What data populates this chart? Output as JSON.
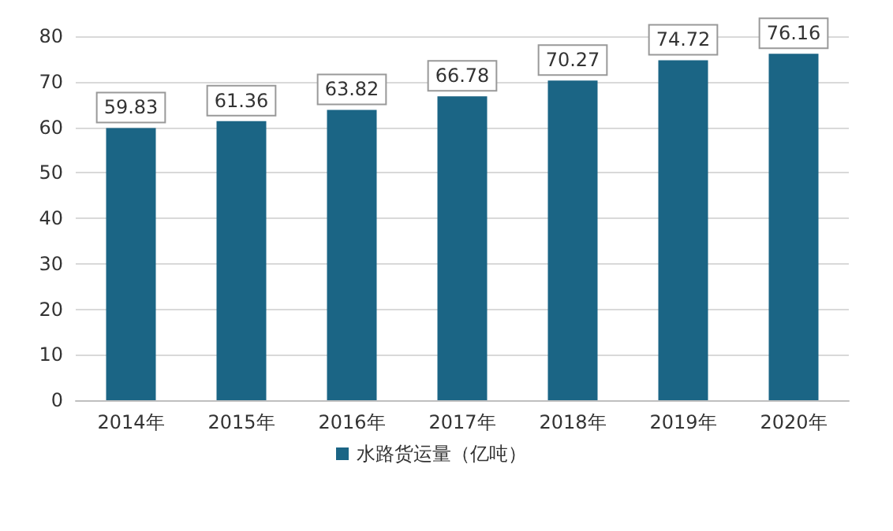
{
  "chart_data": {
    "type": "bar",
    "categories": [
      "2014年",
      "2015年",
      "2016年",
      "2017年",
      "2018年",
      "2019年",
      "2020年"
    ],
    "series": [
      {
        "name": "水路货运量（亿吨）",
        "color": "#1b6585",
        "values": [
          59.83,
          61.36,
          63.82,
          66.78,
          70.27,
          74.72,
          76.16
        ]
      }
    ],
    "ylim": [
      0,
      80
    ],
    "yticks": [
      0,
      10,
      20,
      30,
      40,
      50,
      60,
      70,
      80
    ],
    "grid": "y",
    "legend": "bottom",
    "data_labels": true
  }
}
